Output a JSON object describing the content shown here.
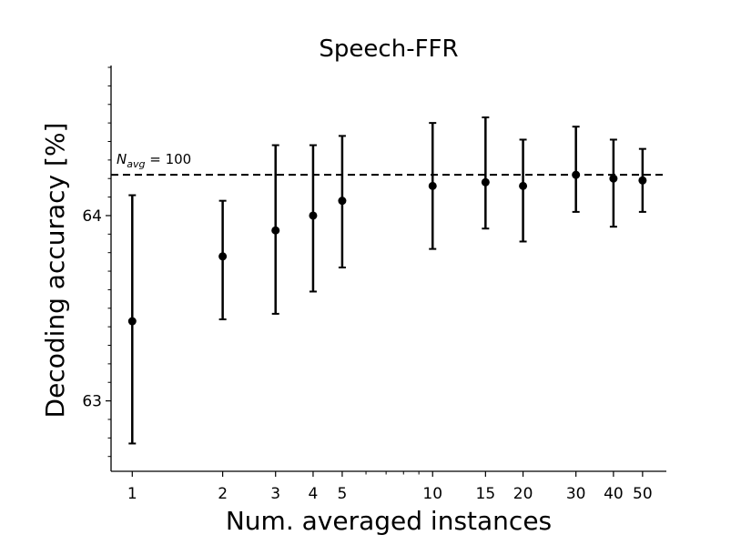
{
  "chart_data": {
    "type": "scatter",
    "title": "Speech-FFR",
    "xlabel": "Num. averaged instances",
    "ylabel": "Decoding accuracy [%]",
    "x_scale": "log",
    "xlim": [
      0.85,
      60
    ],
    "ylim": [
      62.62,
      64.81
    ],
    "x_ticks": [
      1,
      2,
      3,
      4,
      5,
      10,
      15,
      20,
      30,
      40,
      50
    ],
    "y_ticks": [
      63,
      64
    ],
    "grid": false,
    "legend": "none",
    "series": [
      {
        "x": [
          1,
          2,
          3,
          4,
          5,
          10,
          15,
          20,
          30,
          40,
          50
        ],
        "y": [
          63.43,
          63.78,
          63.92,
          64.0,
          64.08,
          64.16,
          64.18,
          64.16,
          64.22,
          64.2,
          64.19
        ],
        "err_low": [
          62.77,
          63.44,
          63.47,
          63.59,
          63.72,
          63.82,
          63.93,
          63.86,
          64.02,
          63.94,
          64.02
        ],
        "err_high": [
          64.11,
          64.08,
          64.38,
          64.38,
          64.43,
          64.5,
          64.53,
          64.41,
          64.48,
          64.41,
          64.36
        ]
      }
    ],
    "reference_line": {
      "y": 64.22,
      "label": "N_avg = 100",
      "style": "dashed"
    },
    "colors": {
      "marker": "#000000",
      "line": "#000000"
    }
  }
}
